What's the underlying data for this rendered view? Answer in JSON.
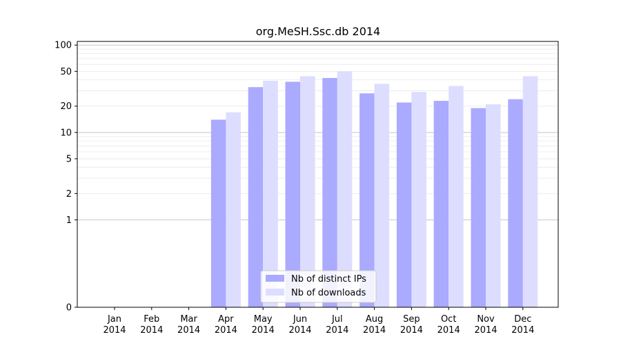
{
  "chart_data": {
    "type": "bar",
    "title": "org.MeSH.Ssc.db 2014",
    "xlabel": "",
    "ylabel": "",
    "y_scale": "symlog",
    "ylim": [
      0,
      110
    ],
    "y_ticks": [
      "0",
      "1",
      "2",
      "5",
      "10",
      "20",
      "50",
      "100"
    ],
    "grid": true,
    "legend_position": "bottom-center",
    "categories": [
      "Jan\n2014",
      "Feb\n2014",
      "Mar\n2014",
      "Apr\n2014",
      "May\n2014",
      "Jun\n2014",
      "Jul\n2014",
      "Aug\n2014",
      "Sep\n2014",
      "Oct\n2014",
      "Nov\n2014",
      "Dec\n2014"
    ],
    "series": [
      {
        "name": "Nb of distinct IPs",
        "color": "#aaaaff",
        "values": [
          0,
          0,
          0,
          14,
          33,
          38,
          42,
          28,
          22,
          23,
          19,
          24
        ]
      },
      {
        "name": "Nb of downloads",
        "color": "#ddddff",
        "values": [
          0,
          0,
          0,
          17,
          39,
          44,
          50,
          36,
          29,
          34,
          21,
          44
        ]
      }
    ]
  }
}
